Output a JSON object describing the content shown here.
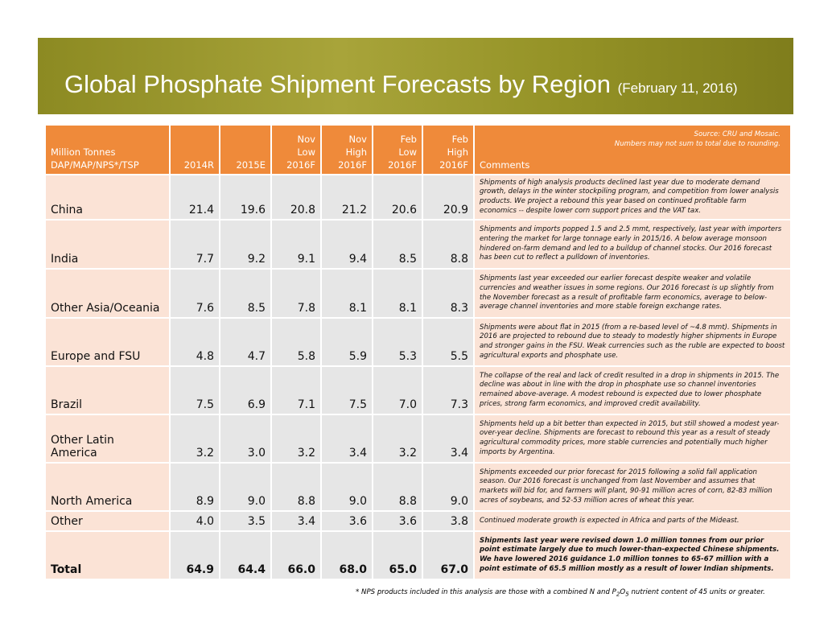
{
  "header": {
    "title": "Global Phosphate Shipment Forecasts by Region",
    "subtitle": "(February 11, 2016)"
  },
  "table": {
    "head_label": [
      "Million Tonnes",
      "DAP/MAP/NPS*/TSP"
    ],
    "columns": [
      [
        "2014R"
      ],
      [
        "2015E"
      ],
      [
        "Nov",
        "Low",
        "2016F"
      ],
      [
        "Nov",
        "High",
        "2016F"
      ],
      [
        "Feb",
        "Low",
        "2016F"
      ],
      [
        "Feb",
        "High",
        "2016F"
      ]
    ],
    "comments_label": "Comments",
    "source": "Source: CRU and Mosaic.",
    "rounding_note": "Numbers may not sum to total due to rounding.",
    "rows": [
      {
        "region": "China",
        "values": [
          "21.4",
          "19.6",
          "20.8",
          "21.2",
          "20.6",
          "20.9"
        ],
        "comment": "Shipments of high analysis products declined last year due to moderate demand growth, delays in the winter stockpiling program, and competition from lower analysis products.  We project a rebound this year based on continued profitable farm economics -- despite lower corn support prices and the VAT tax."
      },
      {
        "region": "India",
        "values": [
          "7.7",
          "9.2",
          "9.1",
          "9.4",
          "8.5",
          "8.8"
        ],
        "comment": "Shipments and imports popped 1.5 and 2.5 mmt, respectively, last year with importers entering the market for large tonnage early in 2015/16. A below average monsoon hindered on-farm demand and led to a buildup of channel stocks. Our 2016 forecast has been cut to reflect a pulldown of inventories."
      },
      {
        "region": "Other Asia/Oceania",
        "values": [
          "7.6",
          "8.5",
          "7.8",
          "8.1",
          "8.1",
          "8.3"
        ],
        "comment": "Shipments last year exceeded our earlier forecast despite weaker and volatile currencies and weather issues in some regions.  Our 2016 forecast is up slightly from the November forecast as a result of profitable farm economics, average to below-average channel inventories and more stable foreign exchange rates."
      },
      {
        "region": "Europe and FSU",
        "values": [
          "4.8",
          "4.7",
          "5.8",
          "5.9",
          "5.3",
          "5.5"
        ],
        "comment": "Shipments were about flat in 2015 (from a re-based level of ~4.8 mmt).  Shipments in 2016 are projected to rebound due to steady to modestly higher shipments in Europe and stronger gains in the FSU.  Weak currencies such as the ruble are expected to boost agricultural exports and phosphate use."
      },
      {
        "region": "Brazil",
        "values": [
          "7.5",
          "6.9",
          "7.1",
          "7.5",
          "7.0",
          "7.3"
        ],
        "comment": "The collapse of the real and lack of credit resulted in a drop in shipments in 2015.  The decline was about in line with the drop in phosphate use so channel inventories remained above-average.  A modest rebound is expected due to lower phosphate prices, strong farm economics, and improved credit availability."
      },
      {
        "region": "Other Latin America",
        "values": [
          "3.2",
          "3.0",
          "3.2",
          "3.4",
          "3.2",
          "3.4"
        ],
        "comment": "Shipments held up a bit better than expected in 2015, but still showed a modest year-over-year decline. Shipments are forecast to rebound this year as a result of steady agricultural commodity prices, more stable currencies and potentially much higher imports by Argentina."
      },
      {
        "region": "North America",
        "values": [
          "8.9",
          "9.0",
          "8.8",
          "9.0",
          "8.8",
          "9.0"
        ],
        "comment": "Shipments exceeded our prior forecast for 2015 following a solid fall application season. Our 2016 forecast is unchanged from last November and assumes that markets will bid for, and farmers will plant, 90-91 million acres of corn, 82-83 million acres of soybeans, and 52-53 million acres of wheat this year."
      },
      {
        "region": "Other",
        "values": [
          "4.0",
          "3.5",
          "3.4",
          "3.6",
          "3.6",
          "3.8"
        ],
        "comment": "Continued moderate growth is expected in Africa and parts of the Mideast."
      },
      {
        "region": "Total",
        "values": [
          "64.9",
          "64.4",
          "66.0",
          "68.0",
          "65.0",
          "67.0"
        ],
        "comment": "Shipments last year were revised down 1.0 million tonnes from our prior point estimate largely due to much lower-than-expected Chinese shipments.  We have lowered 2016 guidance 1.0 million tonnes to 65-67 million with a point estimate of 65.5 million mostly as a result of lower Indian shipments."
      }
    ]
  },
  "footnote": {
    "before": "* NPS products included in this analysis are those with a combined N and P",
    "sub1": "2",
    "mid": "O",
    "sub2": "5",
    "after": " nutrient content of 45 units or greater."
  }
}
